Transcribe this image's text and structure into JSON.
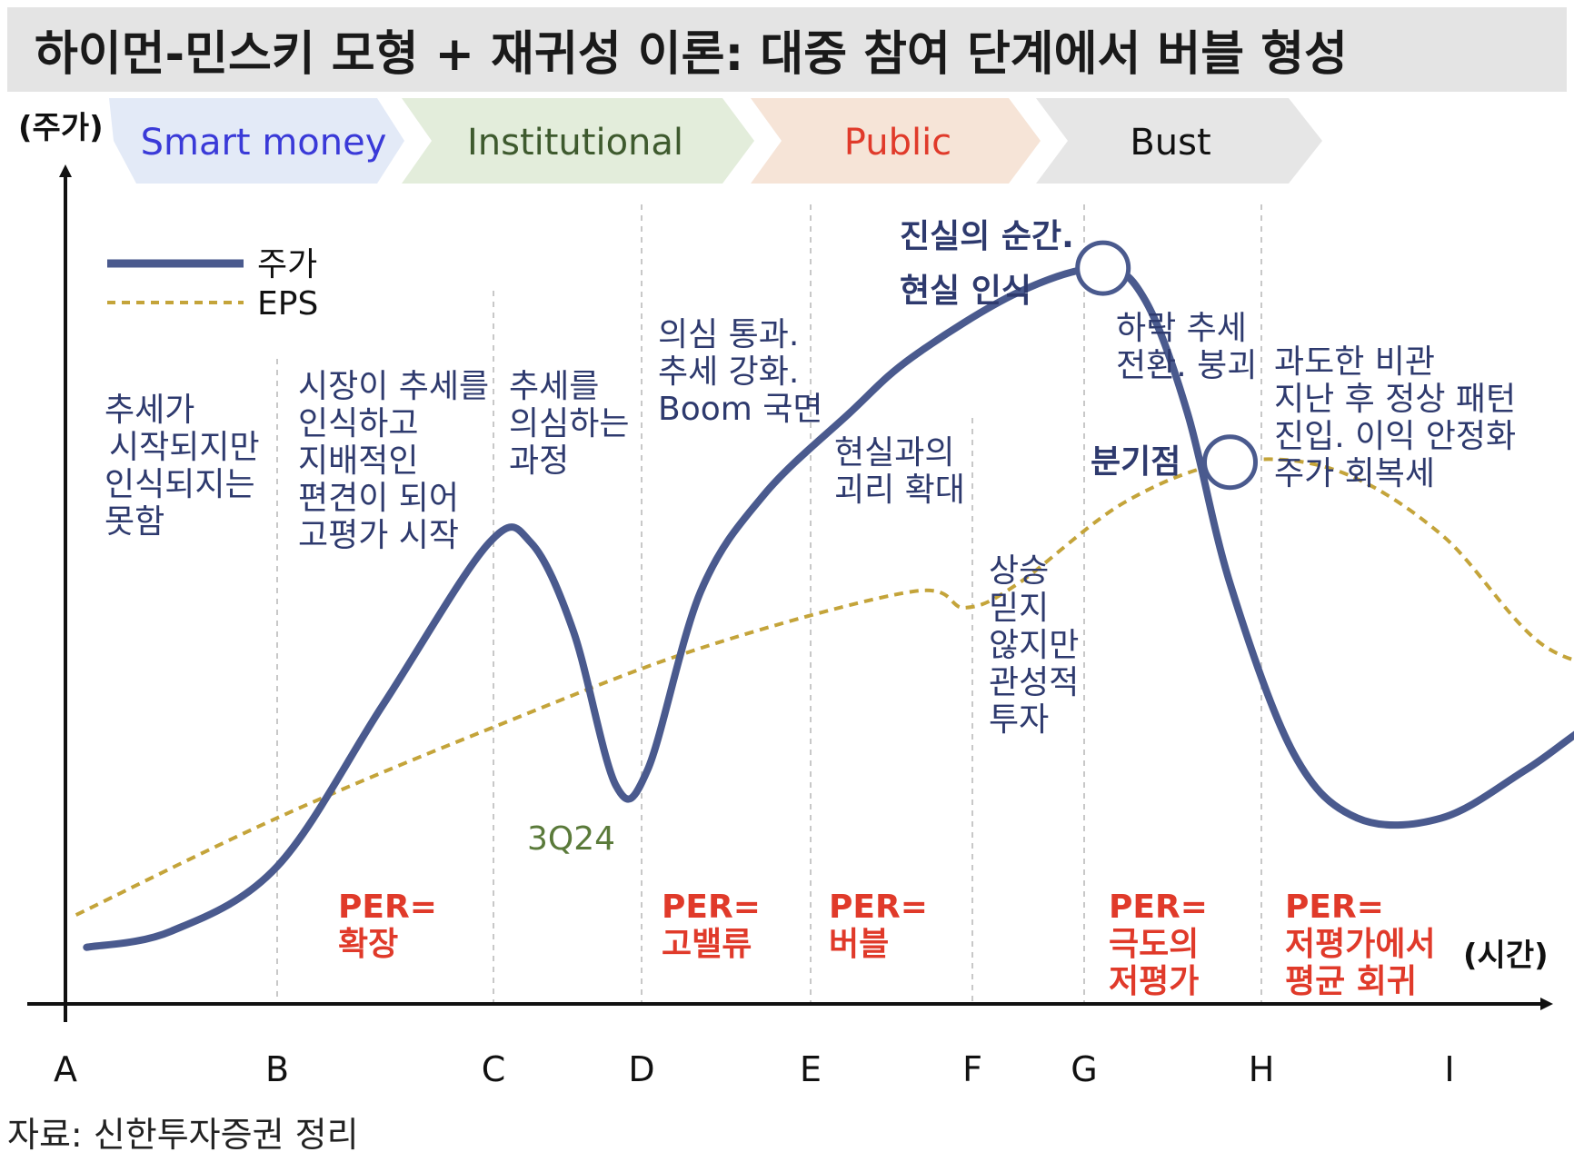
{
  "title": "하이먼-민스키 모형 + 재귀성 이론: 대중 참여 단계에서 버블 형성",
  "source": "자료: 신한투자증권 정리",
  "colors": {
    "price_line": "#4a5a8e",
    "eps_line": "#c4a43a",
    "smart_money_bg": "#e3eaf7",
    "smart_money_text": "#3a3ad8",
    "institutional_bg": "#e3eddb",
    "institutional_text": "#3e5a2e",
    "public_bg": "#f6e4d7",
    "public_text": "#e03a2a",
    "bust_bg": "#e6e6e6",
    "bust_text": "#111111",
    "note_text": "#2e3a6e",
    "per_text": "#e03a2a"
  },
  "phases": [
    {
      "label": "Smart money",
      "color_key": "smart_money"
    },
    {
      "label": "Institutional",
      "color_key": "institutional"
    },
    {
      "label": "Public",
      "color_key": "public"
    },
    {
      "label": "Bust",
      "color_key": "bust"
    }
  ],
  "annotations": {
    "a_note": [
      "추세가",
      "시작되지만",
      "인식되지는",
      "못함"
    ],
    "b_note": [
      "시장이 추세를",
      "인식하고",
      "지배적인",
      "편견이 되어",
      "고평가 시작"
    ],
    "c_note": [
      "추세를",
      "의심하는",
      "과정"
    ],
    "d_note": [
      "의심 통과.",
      "추세 강화.",
      "Boom 국면"
    ],
    "e_note": [
      "현실과의",
      "괴리 확대"
    ],
    "f_title": [
      "진실의 순간.",
      "현실 인식"
    ],
    "f_note": [
      "상승",
      "믿지",
      "않지만",
      "관성적",
      "투자"
    ],
    "g_title": "분기점",
    "g_note": [
      "하락 추세",
      "전환. 붕괴"
    ],
    "h_note": [
      "과도한 비관",
      "지난 후 정상 패턴",
      "진입. 이익 안정화",
      "주가 회복세"
    ],
    "trough_label": "3Q24"
  },
  "per_labels": [
    [
      "PER=",
      "확장"
    ],
    [
      "PER=",
      "고밸류"
    ],
    [
      "PER=",
      "버블"
    ],
    [
      "PER=",
      "극도의",
      "저평가"
    ],
    [
      "PER=",
      "저평가에서",
      "평균 회귀"
    ]
  ],
  "chart_data": {
    "type": "line",
    "title": "하이먼-민스키 모형 + 재귀성 이론: 대중 참여 단계에서 버블 형성",
    "xlabel": "(시간)",
    "ylabel": "(주가)",
    "x_ticks": [
      "A",
      "B",
      "C",
      "D",
      "E",
      "F",
      "G",
      "H",
      "I"
    ],
    "xlim": [
      0,
      8.3
    ],
    "ylim": [
      0,
      100
    ],
    "grid": false,
    "legend_position": "top-left",
    "series": [
      {
        "name": "주가",
        "style": "solid",
        "x": [
          0.1,
          0.5,
          1.0,
          1.5,
          2.0,
          2.2,
          2.4,
          2.6,
          2.75,
          3.0,
          3.3,
          3.7,
          4.0,
          4.5,
          4.9,
          5.1,
          5.3,
          5.5,
          5.8,
          6.1,
          6.5,
          6.9,
          7.3,
          7.8,
          8.2
        ],
        "values": [
          7,
          9,
          17,
          37,
          57,
          57,
          46,
          27,
          29,
          51,
          63,
          73,
          80,
          88,
          91,
          87,
          73,
          52,
          31,
          23,
          23,
          29,
          36,
          40,
          39
        ]
      },
      {
        "name": "EPS",
        "style": "dashed",
        "x": [
          0.05,
          1.0,
          2.0,
          3.0,
          4.0,
          4.25,
          4.5,
          5.0,
          5.5,
          6.0,
          6.5,
          7.0,
          7.5,
          8.2
        ],
        "values": [
          11,
          23,
          34,
          44,
          51,
          49,
          52,
          62,
          67,
          66,
          58,
          44,
          42,
          44
        ]
      }
    ],
    "markers": [
      {
        "label": "진실의 순간",
        "x": 4.9,
        "y": 91
      },
      {
        "label": "분기점",
        "x": 5.5,
        "y": 67
      }
    ]
  }
}
